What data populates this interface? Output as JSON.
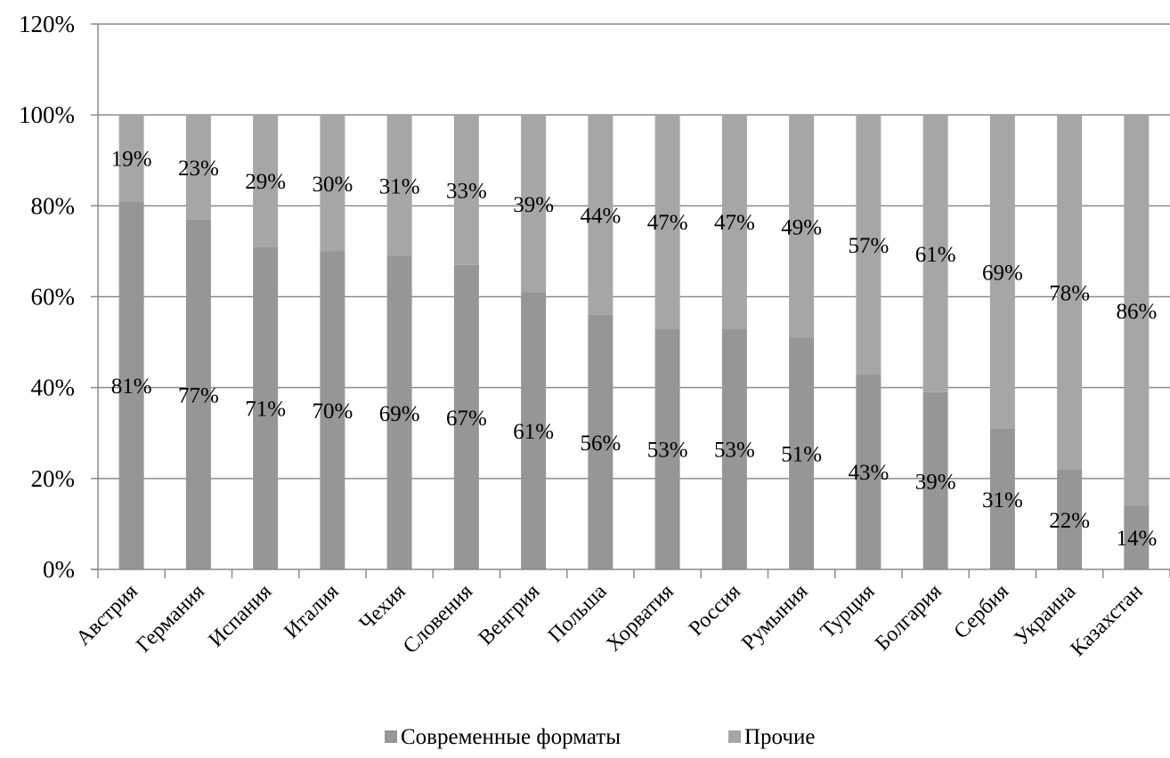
{
  "chart_data": {
    "type": "bar",
    "stacked": true,
    "percent_stacked": true,
    "categories": [
      "Австрия",
      "Германия",
      "Испания",
      "Италия",
      "Чехия",
      "Словения",
      "Венгрия",
      "Польша",
      "Хорватия",
      "Россия",
      "Румыния",
      "Турция",
      "Болгария",
      "Сербия",
      "Украина",
      "Казахстан"
    ],
    "series": [
      {
        "name": "Современные форматы",
        "color": "#969696",
        "values": [
          81,
          77,
          71,
          70,
          69,
          67,
          61,
          56,
          53,
          53,
          51,
          43,
          39,
          31,
          22,
          14
        ],
        "labels": [
          "81%",
          "77%",
          "71%",
          "70%",
          "69%",
          "67%",
          "61%",
          "56%",
          "53%",
          "53%",
          "51%",
          "43%",
          "39%",
          "31%",
          "22%",
          "14%"
        ]
      },
      {
        "name": "Прочие",
        "color": "#a6a6a6",
        "values": [
          19,
          23,
          29,
          30,
          31,
          33,
          39,
          44,
          47,
          47,
          49,
          57,
          61,
          69,
          78,
          86
        ],
        "labels": [
          "19%",
          "23%",
          "29%",
          "30%",
          "31%",
          "33%",
          "39%",
          "44%",
          "47%",
          "47%",
          "49%",
          "57%",
          "61%",
          "69%",
          "78%",
          "86%"
        ]
      }
    ],
    "ylim": [
      0,
      120
    ],
    "yticks": [
      0,
      20,
      40,
      60,
      80,
      100,
      120
    ],
    "ytick_labels": [
      "0%",
      "20%",
      "40%",
      "60%",
      "80%",
      "100%",
      "120%"
    ],
    "grid": true,
    "legend_position": "bottom",
    "title": "",
    "xlabel": "",
    "ylabel": ""
  }
}
